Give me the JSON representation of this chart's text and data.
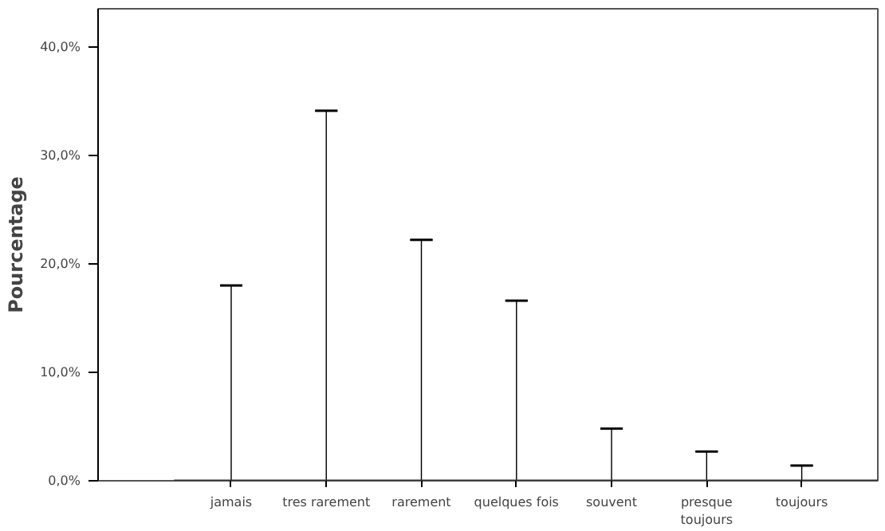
{
  "chart_data": {
    "type": "bar",
    "ylabel": "Pourcentage",
    "categories": [
      "jamais",
      "tres rarement",
      "rarement",
      "quelques fois",
      "souvent",
      "presque\ntoujours",
      "toujours"
    ],
    "values": [
      18.0,
      34.1,
      22.2,
      16.6,
      4.8,
      2.7,
      1.4
    ],
    "color": "#000000",
    "errors": [
      0,
      0,
      0,
      0,
      0,
      0,
      0
    ],
    "ylim": [
      0,
      43.5
    ],
    "yticks": [
      {
        "value": 0,
        "label": "0,0%"
      },
      {
        "value": 10,
        "label": "10,0%"
      },
      {
        "value": 20,
        "label": "20,0%"
      },
      {
        "value": 30,
        "label": "30,0%"
      },
      {
        "value": 40,
        "label": "40,0%"
      }
    ],
    "grid": false
  }
}
